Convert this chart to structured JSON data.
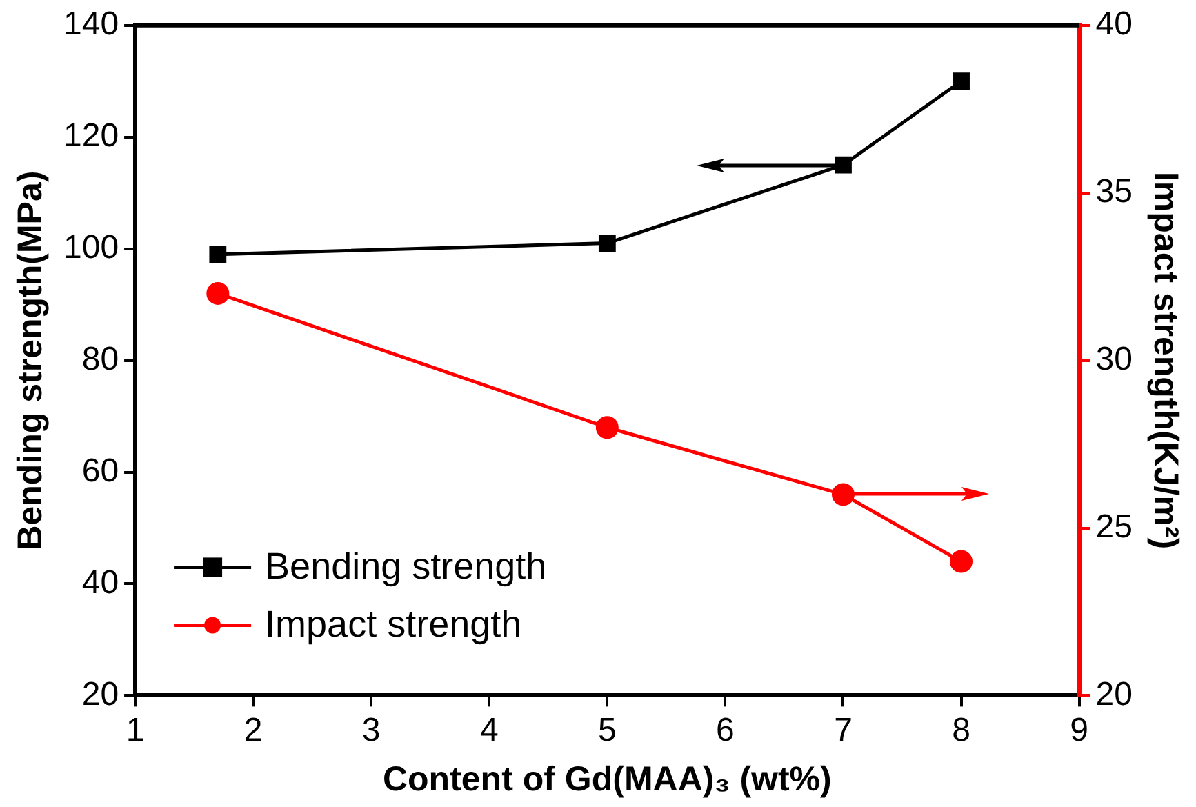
{
  "chart_data": {
    "type": "line",
    "xlabel": "Content of Gd(MAA)₃ (wt%)",
    "ylabel": "Bending strength(MPa)",
    "y2label": "Impact strength(KJ/m²)",
    "x": [
      1.7,
      5,
      7,
      8
    ],
    "series": [
      {
        "name": "Bending strength",
        "color": "#000000",
        "marker": "square",
        "values": [
          99,
          101,
          115,
          130
        ]
      },
      {
        "name": "Impact strength",
        "color": "#ff0000",
        "marker": "circle",
        "axis": "y2",
        "values": [
          32,
          28,
          26,
          24
        ]
      }
    ],
    "xlim": [
      1,
      9
    ],
    "xticks": [
      1,
      2,
      3,
      4,
      5,
      6,
      7,
      8,
      9
    ],
    "ylim": [
      20,
      140
    ],
    "yticks": [
      20,
      40,
      60,
      80,
      100,
      120,
      140
    ],
    "y2lim": [
      20,
      40
    ],
    "y2ticks": [
      20,
      25,
      30,
      35,
      40
    ],
    "legend": "bottom left",
    "line_style": "solid",
    "grid": false
  }
}
